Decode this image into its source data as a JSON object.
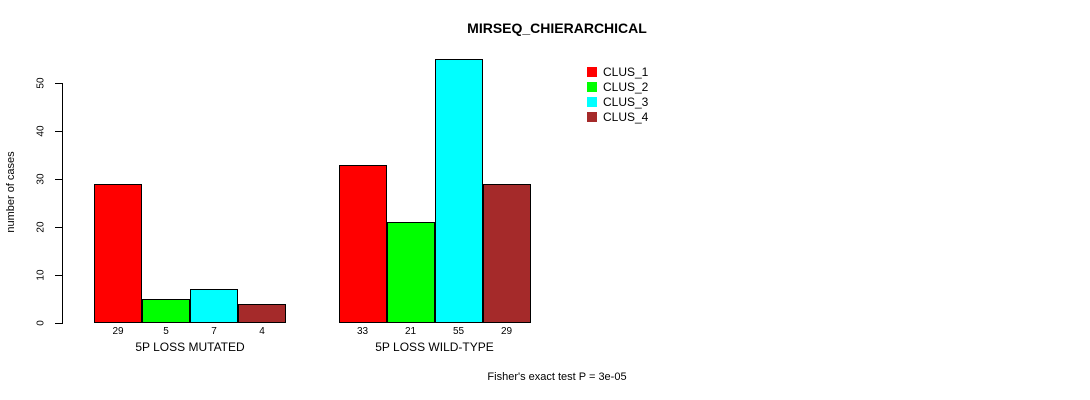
{
  "chart_data": {
    "type": "bar",
    "title": "MIRSEQ_CHIERARCHICAL",
    "xlabel": "",
    "ylabel": "number of cases",
    "ylim": [
      0,
      55
    ],
    "yticks": [
      0,
      10,
      20,
      30,
      40,
      50
    ],
    "grid": false,
    "legend_position": "top-right",
    "categories": [
      "5P LOSS MUTATED",
      "5P LOSS WILD-TYPE"
    ],
    "series": [
      {
        "name": "CLUS_1",
        "color": "#FF0000",
        "values": [
          29,
          33
        ]
      },
      {
        "name": "CLUS_2",
        "color": "#00FF00",
        "values": [
          5,
          21
        ]
      },
      {
        "name": "CLUS_3",
        "color": "#00FFFF",
        "values": [
          7,
          55
        ]
      },
      {
        "name": "CLUS_4",
        "color": "#A52A2A",
        "values": [
          4,
          29
        ]
      }
    ],
    "bar_value_labels": true,
    "annotation": "Fisher's exact test P = 3e-05"
  },
  "colors": {
    "axis": "#000000",
    "text": "#000000",
    "background": "#FFFFFF"
  }
}
